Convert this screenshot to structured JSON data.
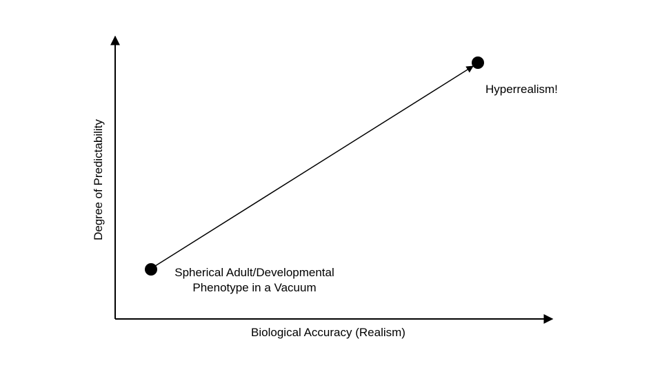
{
  "axes": {
    "x_label": "Biological Accuracy (Realism)",
    "y_label": "Degree of Predictability"
  },
  "points": {
    "start": {
      "label_line1": "Spherical Adult/Developmental",
      "label_line2": "Phenotype in a Vacuum"
    },
    "end": {
      "label": "Hyperrealism!"
    }
  },
  "colors": {
    "ink": "#000000",
    "background": "#ffffff"
  }
}
